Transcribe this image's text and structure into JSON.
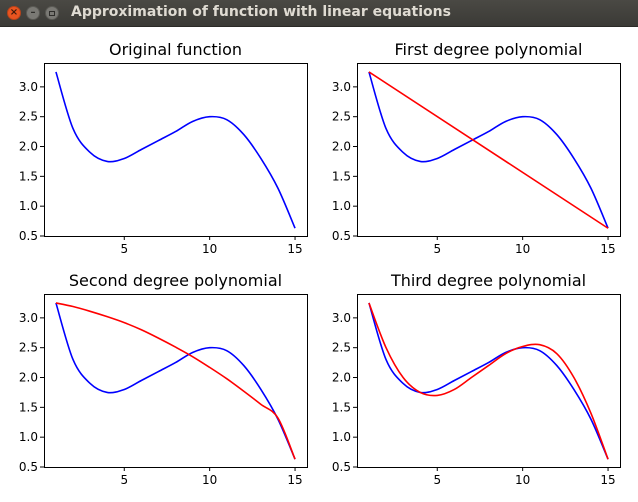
{
  "window": {
    "title": "Approximation of function with linear equations",
    "controls": {
      "close": "×",
      "minimize": "–"
    }
  },
  "colors": {
    "original": "#0000ff",
    "approximation": "#ff0000",
    "titlebar": "#3c3b37",
    "close_button": "#e95420"
  },
  "chart_data": [
    {
      "type": "line",
      "title": "Original function",
      "xlim": [
        0.3,
        15.7
      ],
      "ylim": [
        0.5,
        3.4
      ],
      "xticks": [
        5,
        10,
        15
      ],
      "yticks": [
        0.5,
        1.0,
        1.5,
        2.0,
        2.5,
        3.0
      ],
      "grid": false,
      "series": [
        {
          "color": "#0000ff",
          "x": [
            1,
            2,
            3,
            4,
            5,
            6,
            7,
            8,
            9,
            10,
            11,
            12,
            13,
            14,
            15
          ],
          "y": [
            3.25,
            2.3,
            1.9,
            1.75,
            1.8,
            1.95,
            2.1,
            2.25,
            2.42,
            2.5,
            2.45,
            2.2,
            1.8,
            1.3,
            0.63
          ]
        }
      ]
    },
    {
      "type": "line",
      "title": "First degree polynomial",
      "xlim": [
        0.3,
        15.7
      ],
      "ylim": [
        0.5,
        3.4
      ],
      "xticks": [
        5,
        10,
        15
      ],
      "yticks": [
        0.5,
        1.0,
        1.5,
        2.0,
        2.5,
        3.0
      ],
      "grid": false,
      "series": [
        {
          "color": "#0000ff",
          "x": [
            1,
            2,
            3,
            4,
            5,
            6,
            7,
            8,
            9,
            10,
            11,
            12,
            13,
            14,
            15
          ],
          "y": [
            3.25,
            2.3,
            1.9,
            1.75,
            1.8,
            1.95,
            2.1,
            2.25,
            2.42,
            2.5,
            2.45,
            2.2,
            1.8,
            1.3,
            0.63
          ]
        },
        {
          "color": "#ff0000",
          "x": [
            1,
            15
          ],
          "y": [
            3.25,
            0.63
          ]
        }
      ]
    },
    {
      "type": "line",
      "title": "Second degree polynomial",
      "xlim": [
        0.3,
        15.7
      ],
      "ylim": [
        0.5,
        3.4
      ],
      "xticks": [
        5,
        10,
        15
      ],
      "yticks": [
        0.5,
        1.0,
        1.5,
        2.0,
        2.5,
        3.0
      ],
      "grid": false,
      "series": [
        {
          "color": "#0000ff",
          "x": [
            1,
            2,
            3,
            4,
            5,
            6,
            7,
            8,
            9,
            10,
            11,
            12,
            13,
            14,
            15
          ],
          "y": [
            3.25,
            2.3,
            1.9,
            1.75,
            1.8,
            1.95,
            2.1,
            2.25,
            2.42,
            2.5,
            2.45,
            2.2,
            1.8,
            1.3,
            0.63
          ]
        },
        {
          "color": "#ff0000",
          "x": [
            1,
            2,
            3,
            4,
            5,
            6,
            7,
            8,
            9,
            10,
            11,
            12,
            13,
            14,
            15
          ],
          "y": [
            3.25,
            3.19,
            3.11,
            3.02,
            2.92,
            2.8,
            2.66,
            2.51,
            2.35,
            2.17,
            1.98,
            1.77,
            1.55,
            1.32,
            0.63
          ]
        }
      ]
    },
    {
      "type": "line",
      "title": "Third degree polynomial",
      "xlim": [
        0.3,
        15.7
      ],
      "ylim": [
        0.5,
        3.4
      ],
      "xticks": [
        5,
        10,
        15
      ],
      "yticks": [
        0.5,
        1.0,
        1.5,
        2.0,
        2.5,
        3.0
      ],
      "grid": false,
      "series": [
        {
          "color": "#0000ff",
          "x": [
            1,
            2,
            3,
            4,
            5,
            6,
            7,
            8,
            9,
            10,
            11,
            12,
            13,
            14,
            15
          ],
          "y": [
            3.25,
            2.3,
            1.9,
            1.75,
            1.8,
            1.95,
            2.1,
            2.25,
            2.42,
            2.5,
            2.45,
            2.2,
            1.8,
            1.3,
            0.63
          ]
        },
        {
          "color": "#ff0000",
          "x": [
            1,
            2,
            3,
            4,
            5,
            6,
            7,
            8,
            9,
            10,
            11,
            12,
            13,
            14,
            15
          ],
          "y": [
            3.25,
            2.5,
            2.0,
            1.75,
            1.7,
            1.8,
            2.0,
            2.2,
            2.4,
            2.52,
            2.55,
            2.4,
            2.0,
            1.4,
            0.63
          ]
        }
      ]
    }
  ]
}
